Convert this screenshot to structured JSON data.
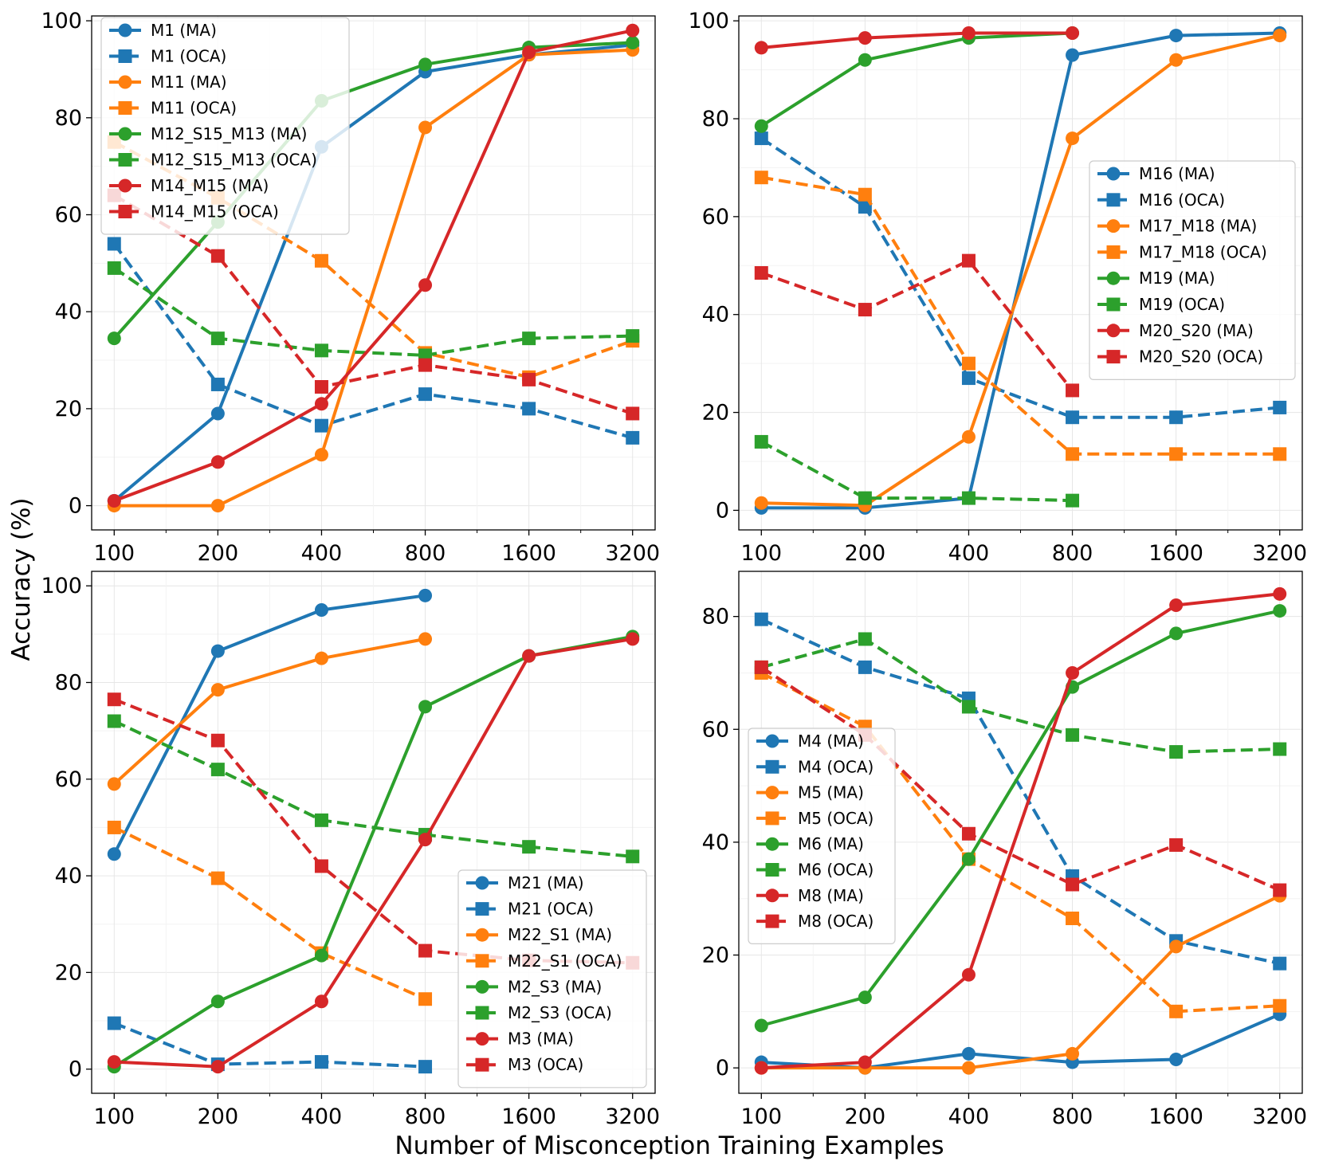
{
  "figure": {
    "ylabel": "Accuracy (%)",
    "xlabel": "Number of Misconception Training Examples"
  },
  "chart_data": [
    {
      "type": "line",
      "xscale": "log2",
      "x": [
        100,
        200,
        400,
        800,
        1600,
        3200
      ],
      "xticks": [
        "100",
        "200",
        "400",
        "800",
        "1600",
        "3200"
      ],
      "ylim": [
        -5,
        101
      ],
      "yticks": [
        0,
        20,
        40,
        60,
        80,
        100
      ],
      "legend_loc": "upper-left",
      "series": [
        {
          "name": "M1 (MA)",
          "color": "#1f77b4",
          "style": "solid",
          "marker": "circle",
          "values": [
            1,
            19,
            74,
            89.5,
            93,
            95
          ]
        },
        {
          "name": "M1 (OCA)",
          "color": "#1f77b4",
          "style": "dashed",
          "marker": "square",
          "values": [
            54,
            25,
            16.5,
            23,
            20,
            14
          ]
        },
        {
          "name": "M11 (MA)",
          "color": "#ff7f0e",
          "style": "solid",
          "marker": "circle",
          "values": [
            0,
            0,
            10.5,
            78,
            93,
            94
          ]
        },
        {
          "name": "M11 (OCA)",
          "color": "#ff7f0e",
          "style": "dashed",
          "marker": "square",
          "values": [
            75,
            63.5,
            50.5,
            31.5,
            26.5,
            34
          ]
        },
        {
          "name": "M12_S15_M13 (MA)",
          "color": "#2ca02c",
          "style": "solid",
          "marker": "circle",
          "values": [
            34.5,
            58.5,
            83.5,
            91,
            94.5,
            95.5
          ]
        },
        {
          "name": "M12_S15_M13 (OCA)",
          "color": "#2ca02c",
          "style": "dashed",
          "marker": "square",
          "values": [
            49,
            34.5,
            32,
            31,
            34.5,
            35
          ]
        },
        {
          "name": "M14_M15 (MA)",
          "color": "#d62728",
          "style": "solid",
          "marker": "circle",
          "values": [
            1,
            9,
            21,
            45.5,
            93.5,
            98
          ]
        },
        {
          "name": "M14_M15 (OCA)",
          "color": "#d62728",
          "style": "dashed",
          "marker": "square",
          "values": [
            64,
            51.5,
            24.5,
            29,
            26,
            19
          ]
        }
      ]
    },
    {
      "type": "line",
      "xscale": "log2",
      "x": [
        100,
        200,
        400,
        800,
        1600,
        3200
      ],
      "xticks": [
        "100",
        "200",
        "400",
        "800",
        "1600",
        "3200"
      ],
      "ylim": [
        -4,
        101
      ],
      "yticks": [
        0,
        20,
        40,
        60,
        80,
        100
      ],
      "legend_loc": "center-right",
      "series": [
        {
          "name": "M16 (MA)",
          "color": "#1f77b4",
          "style": "solid",
          "marker": "circle",
          "values": [
            0.5,
            0.5,
            2.5,
            93,
            97,
            97.5
          ]
        },
        {
          "name": "M16 (OCA)",
          "color": "#1f77b4",
          "style": "dashed",
          "marker": "square",
          "values": [
            76,
            62,
            27,
            19,
            19,
            21
          ]
        },
        {
          "name": "M17_M18 (MA)",
          "color": "#ff7f0e",
          "style": "solid",
          "marker": "circle",
          "values": [
            1.5,
            1,
            15,
            76,
            92,
            97
          ]
        },
        {
          "name": "M17_M18 (OCA)",
          "color": "#ff7f0e",
          "style": "dashed",
          "marker": "square",
          "values": [
            68,
            64.5,
            30,
            11.5,
            11.5,
            11.5
          ]
        },
        {
          "name": "M19 (MA)",
          "color": "#2ca02c",
          "style": "solid",
          "marker": "circle",
          "values": [
            78.5,
            92,
            96.5,
            97.5,
            null,
            null
          ]
        },
        {
          "name": "M19 (OCA)",
          "color": "#2ca02c",
          "style": "dashed",
          "marker": "square",
          "values": [
            14,
            2.5,
            2.5,
            2,
            null,
            null
          ]
        },
        {
          "name": "M20_S20 (MA)",
          "color": "#d62728",
          "style": "solid",
          "marker": "circle",
          "values": [
            94.5,
            96.5,
            97.5,
            97.5,
            null,
            null
          ]
        },
        {
          "name": "M20_S20 (OCA)",
          "color": "#d62728",
          "style": "dashed",
          "marker": "square",
          "values": [
            48.5,
            41,
            51,
            24.5,
            null,
            null
          ]
        }
      ]
    },
    {
      "type": "line",
      "xscale": "log2",
      "x": [
        100,
        200,
        400,
        800,
        1600,
        3200
      ],
      "xticks": [
        "100",
        "200",
        "400",
        "800",
        "1600",
        "3200"
      ],
      "ylim": [
        -5,
        103
      ],
      "yticks": [
        0,
        20,
        40,
        60,
        80,
        100
      ],
      "legend_loc": "lower-right",
      "series": [
        {
          "name": "M21 (MA)",
          "color": "#1f77b4",
          "style": "solid",
          "marker": "circle",
          "values": [
            44.5,
            86.5,
            95,
            98,
            null,
            null
          ]
        },
        {
          "name": "M21 (OCA)",
          "color": "#1f77b4",
          "style": "dashed",
          "marker": "square",
          "values": [
            9.5,
            1,
            1.5,
            0.5,
            null,
            null
          ]
        },
        {
          "name": "M22_S1 (MA)",
          "color": "#ff7f0e",
          "style": "solid",
          "marker": "circle",
          "values": [
            59,
            78.5,
            85,
            89,
            null,
            null
          ]
        },
        {
          "name": "M22_S1 (OCA)",
          "color": "#ff7f0e",
          "style": "dashed",
          "marker": "square",
          "values": [
            50,
            39.5,
            24,
            14.5,
            null,
            null
          ]
        },
        {
          "name": "M2_S3 (MA)",
          "color": "#2ca02c",
          "style": "solid",
          "marker": "circle",
          "values": [
            0.5,
            14,
            23.5,
            75,
            85.5,
            89.5
          ]
        },
        {
          "name": "M2_S3 (OCA)",
          "color": "#2ca02c",
          "style": "dashed",
          "marker": "square",
          "values": [
            72,
            62,
            51.5,
            48.5,
            46,
            44
          ]
        },
        {
          "name": "M3 (MA)",
          "color": "#d62728",
          "style": "solid",
          "marker": "circle",
          "values": [
            1.5,
            0.5,
            14,
            47.5,
            85.5,
            89
          ]
        },
        {
          "name": "M3 (OCA)",
          "color": "#d62728",
          "style": "dashed",
          "marker": "square",
          "values": [
            76.5,
            68,
            42,
            24.5,
            22.5,
            22
          ]
        }
      ]
    },
    {
      "type": "line",
      "xscale": "log2",
      "x": [
        100,
        200,
        400,
        800,
        1600,
        3200
      ],
      "xticks": [
        "100",
        "200",
        "400",
        "800",
        "1600",
        "3200"
      ],
      "ylim": [
        -4.5,
        88
      ],
      "yticks": [
        0,
        20,
        40,
        60,
        80
      ],
      "legend_loc": "center-left",
      "series": [
        {
          "name": "M4 (MA)",
          "color": "#1f77b4",
          "style": "solid",
          "marker": "circle",
          "values": [
            1,
            0,
            2.5,
            1,
            1.5,
            9.5
          ]
        },
        {
          "name": "M4 (OCA)",
          "color": "#1f77b4",
          "style": "dashed",
          "marker": "square",
          "values": [
            79.5,
            71,
            65.5,
            34,
            22.5,
            18.5
          ]
        },
        {
          "name": "M5 (MA)",
          "color": "#ff7f0e",
          "style": "solid",
          "marker": "circle",
          "values": [
            0,
            0,
            0,
            2.5,
            21.5,
            30.5
          ]
        },
        {
          "name": "M5 (OCA)",
          "color": "#ff7f0e",
          "style": "dashed",
          "marker": "square",
          "values": [
            70,
            60.5,
            37,
            26.5,
            10,
            11
          ]
        },
        {
          "name": "M6 (MA)",
          "color": "#2ca02c",
          "style": "solid",
          "marker": "circle",
          "values": [
            7.5,
            12.5,
            37,
            67.5,
            77,
            81
          ]
        },
        {
          "name": "M6 (OCA)",
          "color": "#2ca02c",
          "style": "dashed",
          "marker": "square",
          "values": [
            71,
            76,
            64,
            59,
            56,
            56.5
          ]
        },
        {
          "name": "M8 (MA)",
          "color": "#d62728",
          "style": "solid",
          "marker": "circle",
          "values": [
            0,
            1,
            16.5,
            70,
            82,
            84
          ]
        },
        {
          "name": "M8 (OCA)",
          "color": "#d62728",
          "style": "dashed",
          "marker": "square",
          "values": [
            71,
            59,
            41.5,
            32.5,
            39.5,
            31.5
          ]
        }
      ]
    }
  ]
}
